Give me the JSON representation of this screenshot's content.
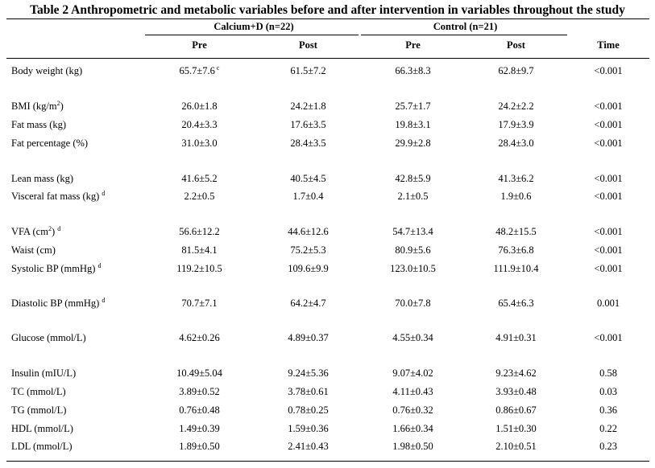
{
  "title": "Table 2 Anthropometric and metabolic variables before and after intervention in variables throughout the study",
  "groups": {
    "calcium": "Calcium+D (n=22)",
    "control": "Control (n=21)"
  },
  "columns": {
    "cal_pre": "Pre",
    "cal_post": "Post",
    "con_pre": "Pre",
    "con_post": "Post",
    "time": "Time"
  },
  "rows": [
    {
      "label": "Body weight (kg)",
      "sup": "",
      "cal_pre": "65.7±7.6",
      "cal_pre_sup": "c",
      "cal_post": "61.5±7.2",
      "con_pre": "66.3±8.3",
      "con_post": "62.8±9.7",
      "time": "<0.001"
    },
    {
      "label": "BMI (kg/m",
      "unit_sup": "2",
      "label_end": ")",
      "sup": "",
      "cal_pre": "26.0±1.8",
      "cal_post": "24.2±1.8",
      "con_pre": "25.7±1.7",
      "con_post": "24.2±2.2",
      "time": "<0.001"
    },
    {
      "label": "Fat mass (kg)",
      "sup": "",
      "cal_pre": "20.4±3.3",
      "cal_post": "17.6±3.5",
      "con_pre": "19.8±3.1",
      "con_post": "17.9±3.9",
      "time": "<0.001"
    },
    {
      "label": "Fat percentage (%)",
      "sup": "",
      "cal_pre": "31.0±3.0",
      "cal_post": "28.4±3.5",
      "con_pre": "29.9±2.8",
      "con_post": "28.4±3.0",
      "time": "<0.001"
    },
    {
      "label": "Lean mass (kg)",
      "sup": "",
      "cal_pre": "41.6±5.2",
      "cal_post": "40.5±4.5",
      "con_pre": "42.8±5.9",
      "con_post": "41.3±6.2",
      "time": "<0.001"
    },
    {
      "label": "Visceral fat mass (kg)",
      "sup": "d",
      "cal_pre": "2.2±0.5",
      "cal_post": "1.7±0.4",
      "con_pre": "2.1±0.5",
      "con_post": "1.9±0.6",
      "time": "<0.001"
    },
    {
      "label": "VFA (cm",
      "unit_sup": "2",
      "label_end": ")",
      "sup": "d",
      "cal_pre": "56.6±12.2",
      "cal_post": "44.6±12.6",
      "con_pre": "54.7±13.4",
      "con_post": "48.2±15.5",
      "time": "<0.001"
    },
    {
      "label": "Waist (cm)",
      "sup": "",
      "cal_pre": "81.5±4.1",
      "cal_post": "75.2±5.3",
      "con_pre": "80.9±5.6",
      "con_post": "76.3±6.8",
      "time": "<0.001"
    },
    {
      "label": "Systolic BP (mmHg)",
      "sup": "d",
      "cal_pre": "119.2±10.5",
      "cal_post": "109.6±9.9",
      "con_pre": "123.0±10.5",
      "con_post": "111.9±10.4",
      "time": "<0.001"
    },
    {
      "label": "Diastolic BP (mmHg)",
      "sup": "d",
      "cal_pre": "70.7±7.1",
      "cal_post": "64.2±4.7",
      "con_pre": "70.0±7.8",
      "con_post": "65.4±6.3",
      "time": "0.001"
    },
    {
      "label": "Glucose (mmol/L)",
      "sup": "",
      "cal_pre": "4.62±0.26",
      "cal_post": "4.89±0.37",
      "con_pre": "4.55±0.34",
      "con_post": "4.91±0.31",
      "time": "<0.001"
    },
    {
      "label": "Insulin (mIU/L)",
      "sup": "",
      "cal_pre": "10.49±5.04",
      "cal_post": "9.24±5.36",
      "con_pre": "9.07±4.02",
      "con_post": "9.23±4.62",
      "time": "0.58"
    },
    {
      "label": "TC (mmol/L)",
      "sup": "",
      "cal_pre": "3.89±0.52",
      "cal_post": "3.78±0.61",
      "con_pre": "4.11±0.43",
      "con_post": "3.93±0.48",
      "time": "0.03"
    },
    {
      "label": "TG (mmol/L)",
      "sup": "",
      "cal_pre": "0.76±0.48",
      "cal_post": "0.78±0.25",
      "con_pre": "0.76±0.32",
      "con_post": "0.86±0.67",
      "time": "0.36"
    },
    {
      "label": "HDL (mmol/L)",
      "sup": "",
      "cal_pre": "1.49±0.39",
      "cal_post": "1.59±0.36",
      "con_pre": "1.66±0.34",
      "con_post": "1.51±0.30",
      "time": "0.22"
    },
    {
      "label": "LDL (mmol/L)",
      "sup": "",
      "cal_pre": "1.89±0.50",
      "cal_post": "2.41±0.43",
      "con_pre": "1.98±0.50",
      "con_post": "2.10±0.51",
      "time": "0.23"
    }
  ]
}
